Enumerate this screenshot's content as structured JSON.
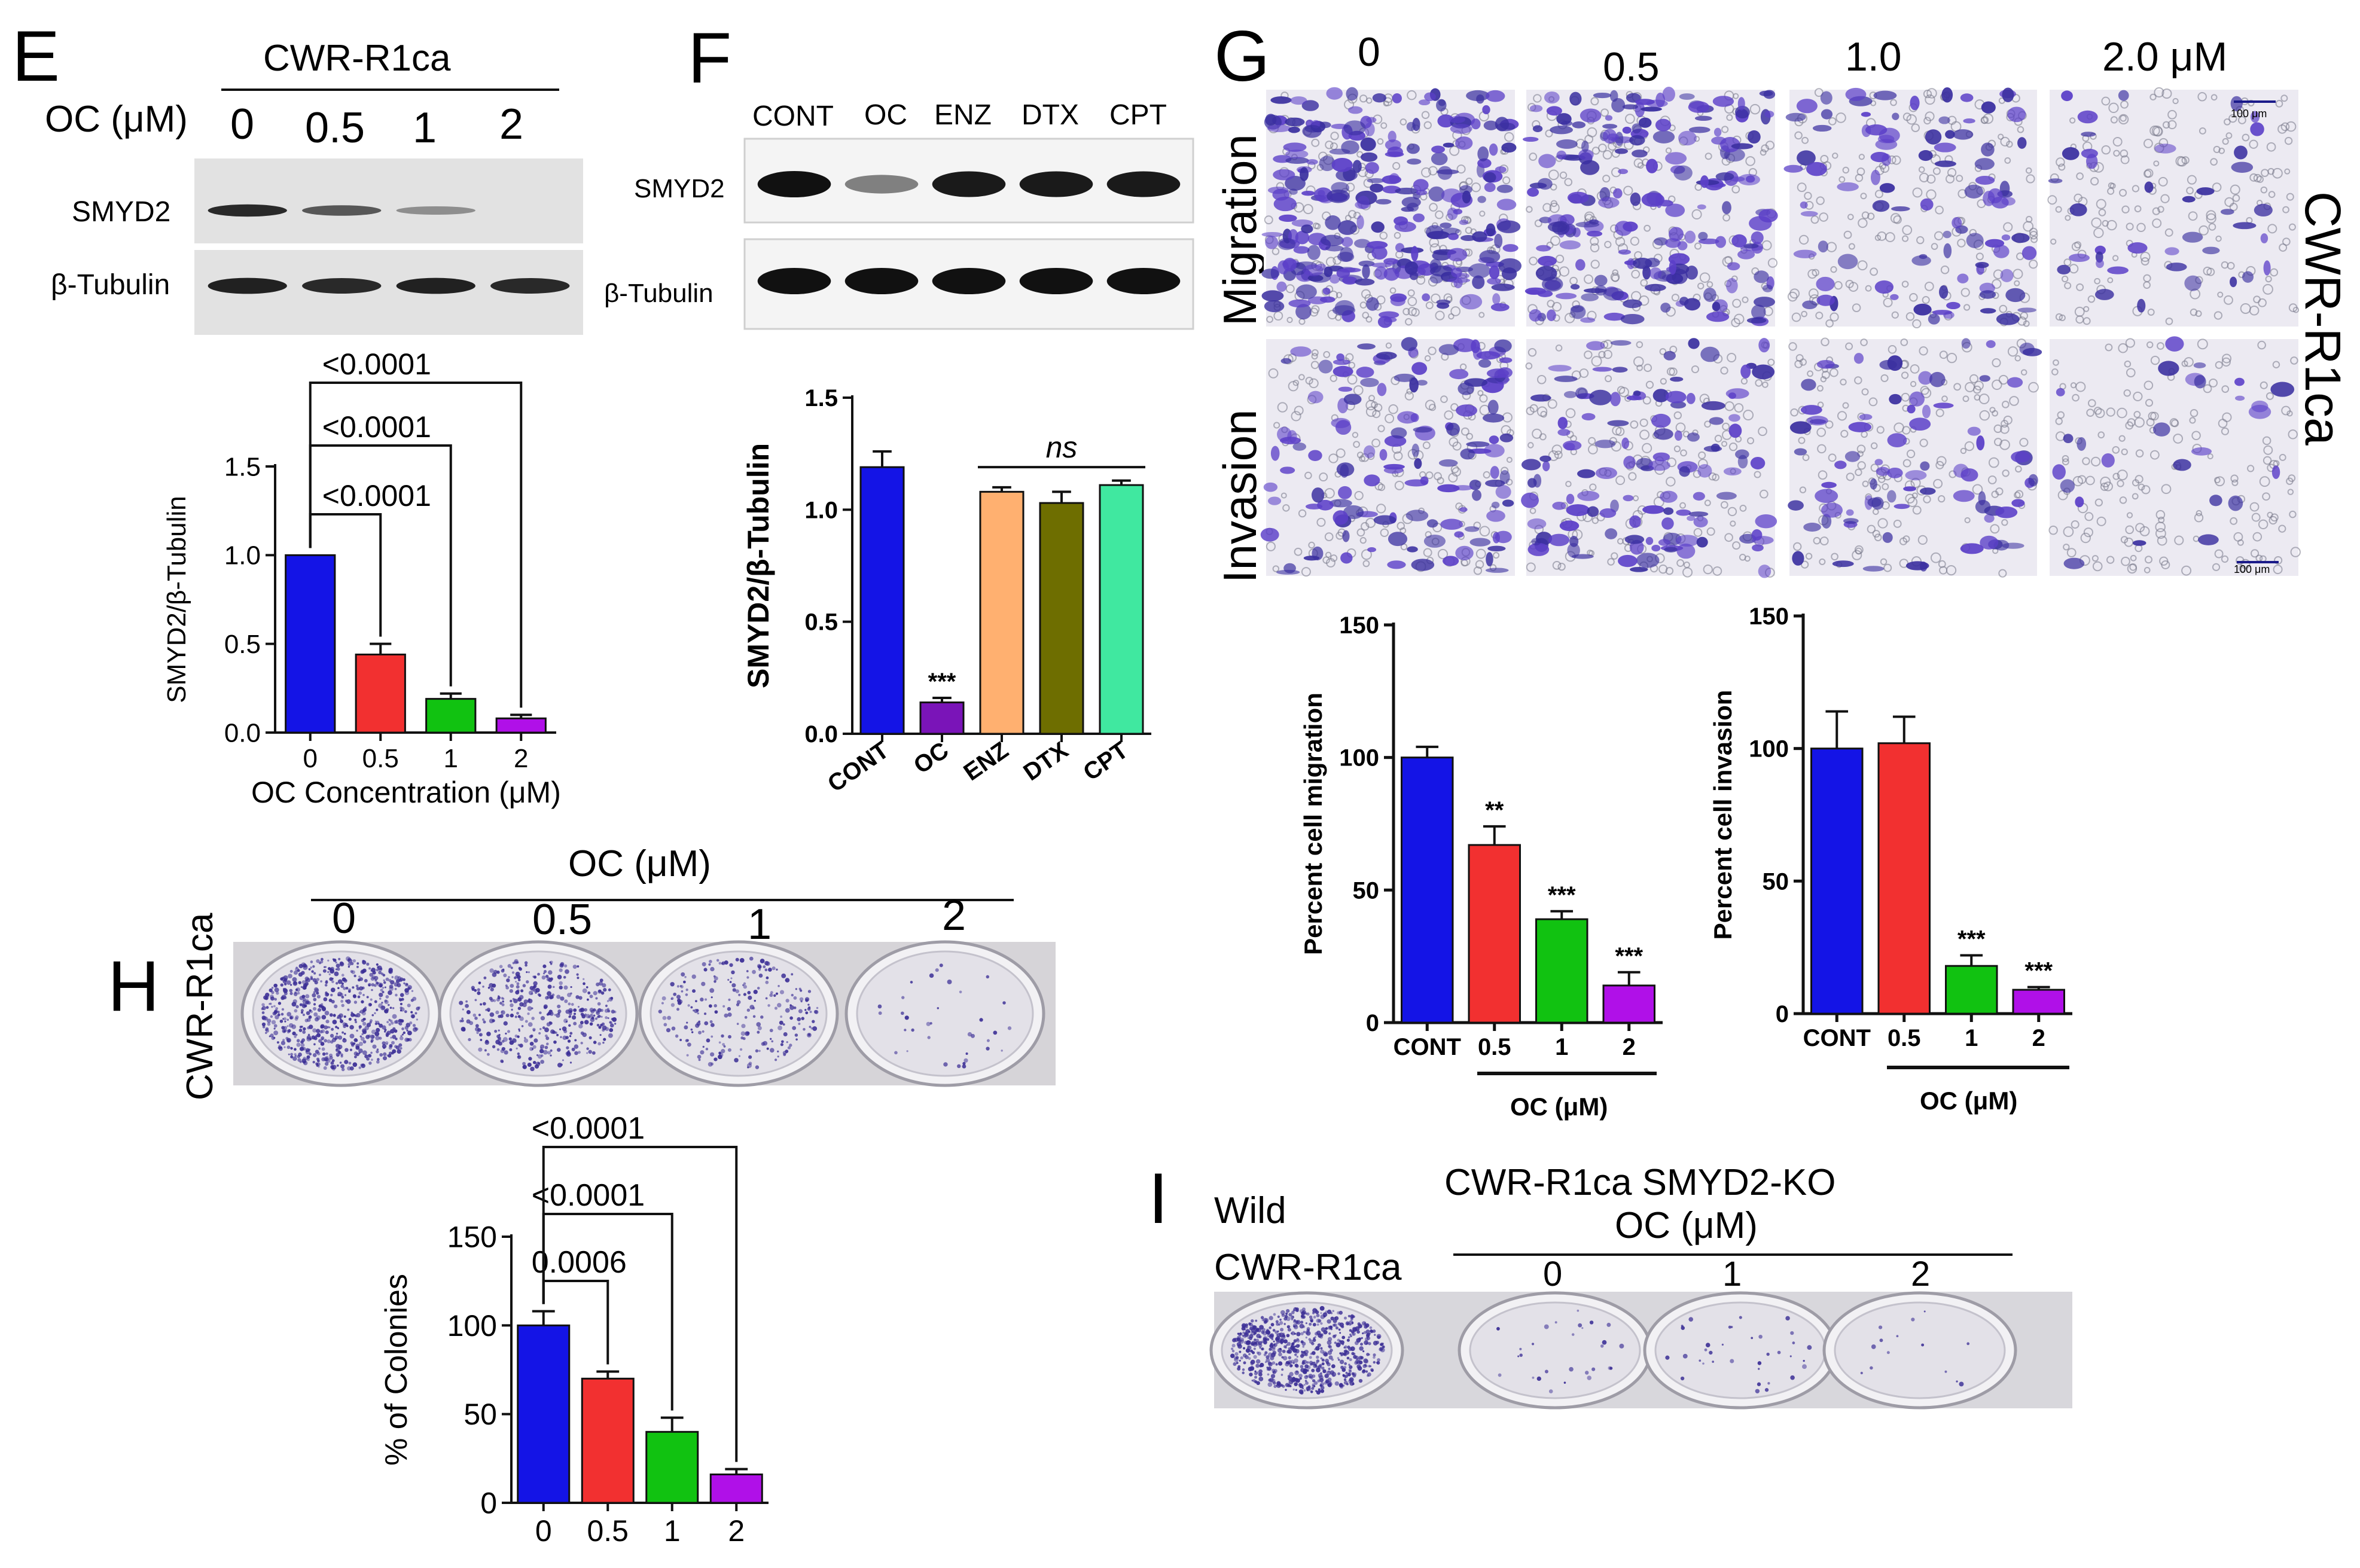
{
  "panels": {
    "E": {
      "letter": "E",
      "cell_line": "CWR-R1ca",
      "treatment_label": "OC (μM)",
      "doses": [
        "0",
        "0.5",
        "1",
        "2"
      ],
      "blot_rows": [
        "SMYD2",
        "β-Tubulin"
      ]
    },
    "F": {
      "letter": "F",
      "lanes": [
        "CONT",
        "OC",
        "ENZ",
        "DTX",
        "CPT"
      ],
      "blot_rows": [
        "SMYD2",
        "β-Tubulin"
      ]
    },
    "G": {
      "letter": "G",
      "doses": [
        "0",
        "0.5",
        "1.0",
        "2.0  μM"
      ],
      "row_labels": [
        "Migration",
        "Invasion"
      ],
      "cell_line": "CWR-R1ca",
      "scale_bar": "100 μm"
    },
    "H": {
      "letter": "H",
      "treatment_label": "OC (μM)",
      "doses": [
        "0",
        "0.5",
        "1",
        "2"
      ],
      "cell_line": "CWR-R1ca"
    },
    "I": {
      "letter": "I",
      "wild_label_1": "Wild",
      "wild_label_2": "CWR-R1ca",
      "title_1": "CWR-R1ca SMYD2-KO",
      "title_2": "OC (μM)",
      "doses": [
        "0",
        "1",
        "2"
      ]
    }
  },
  "colors": {
    "blue": "#1414e6",
    "red": "#f23030",
    "green": "#11c211",
    "purple": "#b010e8",
    "dark_purple": "#7a14b8",
    "orange": "#ffb070",
    "olive": "#6e6e00",
    "mint": "#40e8a0",
    "stain": "#4a3a9e"
  },
  "chart_data": [
    {
      "id": "E",
      "type": "bar",
      "categories": [
        "0",
        "0.5",
        "1",
        "2"
      ],
      "values": [
        1.0,
        0.44,
        0.19,
        0.08
      ],
      "errors": [
        0.0,
        0.06,
        0.03,
        0.02
      ],
      "colors": [
        "#1414e6",
        "#f23030",
        "#11c211",
        "#b010e8"
      ],
      "ylabel": "SMYD2/β-Tubulin",
      "xlabel": "OC Concentration (μM)",
      "ylim": [
        0,
        1.5
      ],
      "yticks": [
        0.0,
        0.5,
        1.0,
        1.5
      ],
      "ytick_labels": [
        "0.0",
        "0.5",
        "1.0",
        "1.5"
      ],
      "comparisons": [
        {
          "from": 0,
          "to": 1,
          "label": "<0.0001"
        },
        {
          "from": 0,
          "to": 2,
          "label": "<0.0001"
        },
        {
          "from": 0,
          "to": 3,
          "label": "<0.0001"
        }
      ]
    },
    {
      "id": "F",
      "type": "bar",
      "categories": [
        "CONT",
        "OC",
        "ENZ",
        "DTX",
        "CPT"
      ],
      "values": [
        1.19,
        0.14,
        1.08,
        1.03,
        1.11
      ],
      "errors": [
        0.07,
        0.02,
        0.02,
        0.05,
        0.02
      ],
      "colors": [
        "#1414e6",
        "#7a14b8",
        "#ffb070",
        "#6e6e00",
        "#40e8a0"
      ],
      "ylabel": "SMYD2/β-Tubulin",
      "ylim": [
        0,
        1.5
      ],
      "yticks": [
        0.0,
        0.5,
        1.0,
        1.5
      ],
      "ytick_labels": [
        "0.0",
        "0.5",
        "1.0",
        "1.5"
      ],
      "stars": [
        "",
        "***",
        "",
        "",
        ""
      ],
      "ns_label": "ns"
    },
    {
      "id": "G-migration",
      "type": "bar",
      "categories": [
        "CONT",
        "0.5",
        "1",
        "2"
      ],
      "values": [
        100,
        67,
        39,
        14
      ],
      "errors": [
        4,
        7,
        3,
        5
      ],
      "colors": [
        "#1414e6",
        "#f23030",
        "#11c211",
        "#b010e8"
      ],
      "ylabel": "Percent cell migration",
      "xlabel": "OC (μM)",
      "ylim": [
        0,
        150
      ],
      "yticks": [
        0,
        50,
        100,
        150
      ],
      "ytick_labels": [
        "0",
        "50",
        "100",
        "150"
      ],
      "stars": [
        "",
        "**",
        "***",
        "***"
      ]
    },
    {
      "id": "G-invasion",
      "type": "bar",
      "categories": [
        "CONT",
        "0.5",
        "1",
        "2"
      ],
      "values": [
        100,
        102,
        18,
        9
      ],
      "errors": [
        14,
        10,
        4,
        1
      ],
      "colors": [
        "#1414e6",
        "#f23030",
        "#11c211",
        "#b010e8"
      ],
      "ylabel": "Percent cell invasion",
      "xlabel": "OC (μM)",
      "ylim": [
        0,
        150
      ],
      "yticks": [
        0,
        50,
        100,
        150
      ],
      "ytick_labels": [
        "0",
        "50",
        "100",
        "150"
      ],
      "stars": [
        "",
        "",
        "***",
        "***"
      ]
    },
    {
      "id": "H",
      "type": "bar",
      "categories": [
        "0",
        "0.5",
        "1",
        "2"
      ],
      "values": [
        100,
        70,
        40,
        16
      ],
      "errors": [
        8,
        4,
        8,
        3
      ],
      "colors": [
        "#1414e6",
        "#f23030",
        "#11c211",
        "#b010e8"
      ],
      "ylabel": "% of Colonies",
      "ylim": [
        0,
        150
      ],
      "yticks": [
        0,
        50,
        100,
        150
      ],
      "ytick_labels": [
        "0",
        "50",
        "100",
        "150"
      ],
      "comparisons": [
        {
          "from": 0,
          "to": 1,
          "label": "0.0006"
        },
        {
          "from": 0,
          "to": 2,
          "label": "<0.0001"
        },
        {
          "from": 0,
          "to": 3,
          "label": "<0.0001"
        }
      ]
    }
  ],
  "blots": {
    "E": {
      "SMYD2": [
        0.85,
        0.55,
        0.2,
        0.0
      ],
      "β-Tubulin": [
        0.9,
        0.85,
        0.9,
        0.85
      ]
    },
    "F": {
      "SMYD2": [
        1.0,
        0.35,
        0.95,
        0.95,
        0.95
      ],
      "β-Tubulin": [
        1.0,
        1.0,
        1.0,
        1.0,
        1.0
      ]
    }
  },
  "colony_density": {
    "H": [
      1.0,
      0.6,
      0.35,
      0.05
    ],
    "I": [
      1.0,
      0.04,
      0.05,
      0.02
    ]
  }
}
